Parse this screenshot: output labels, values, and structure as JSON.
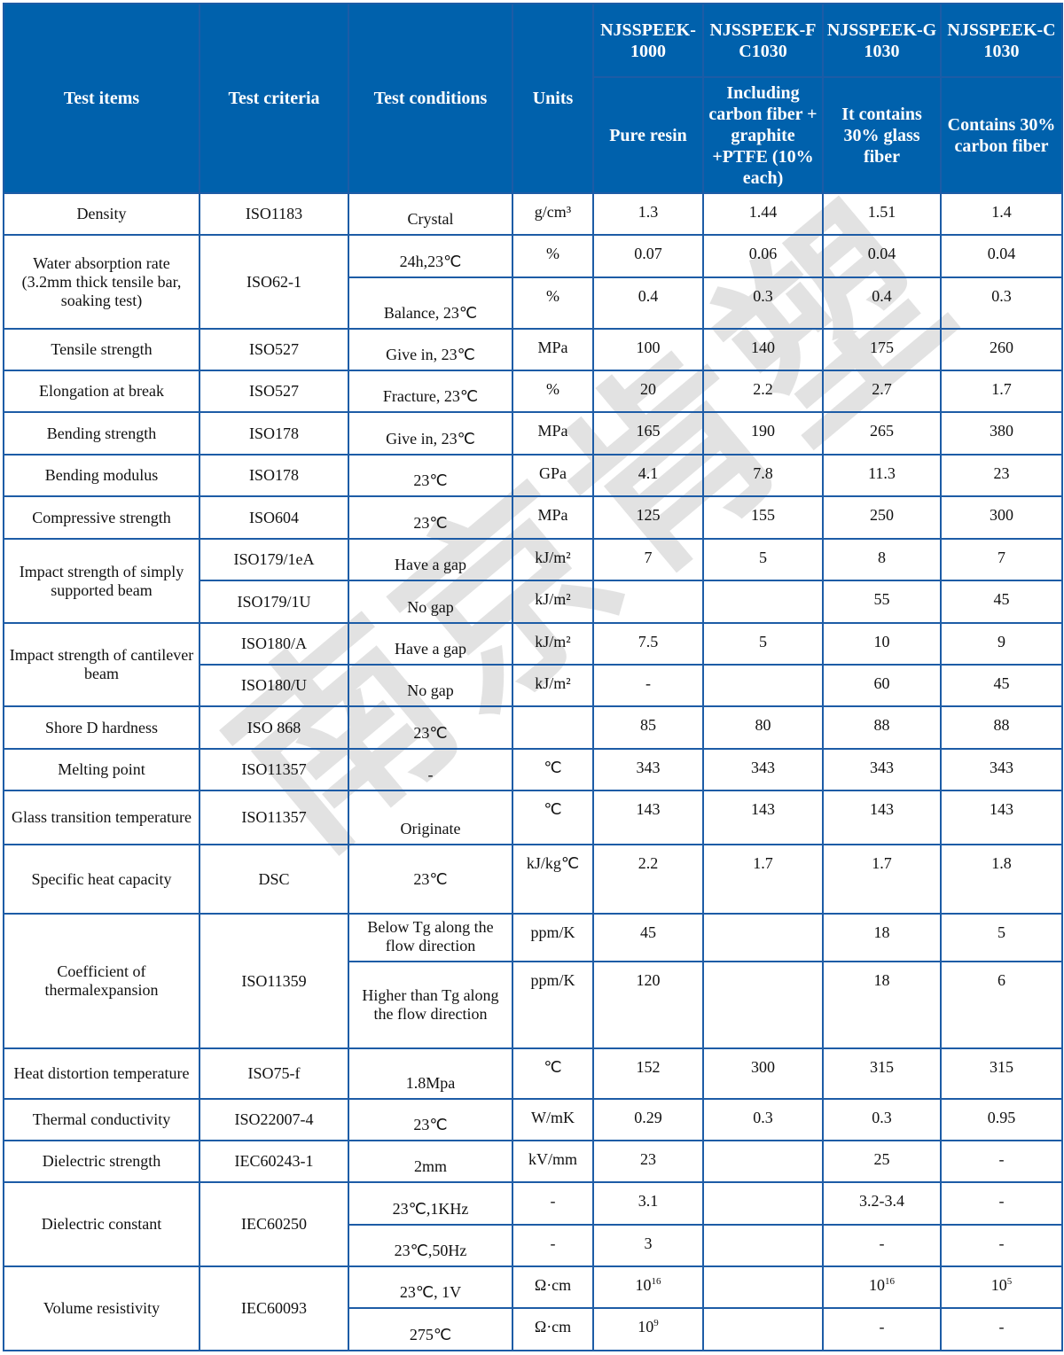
{
  "header": {
    "test_items": "Test items",
    "test_criteria": "Test criteria",
    "test_conditions": "Test conditions",
    "units": "Units",
    "products": [
      {
        "name": "NJSSPEEK-1000",
        "desc": "Pure resin"
      },
      {
        "name": "NJSSPEEK-FC1030",
        "desc": "Including carbon fiber + graphite +PTFE (10% each)"
      },
      {
        "name": "NJSSPEEK-G1030",
        "desc": "It contains 30% glass fiber"
      },
      {
        "name": "NJSSPEEK-C1030",
        "desc": "Contains 30% carbon fiber"
      }
    ]
  },
  "watermark": "南京肯塑",
  "rows": [
    {
      "cells": [
        {
          "t": "Density"
        },
        {
          "t": "ISO1183"
        },
        {
          "t": "Crystal"
        },
        {
          "t": "g/cm³"
        },
        {
          "t": "1.3"
        },
        {
          "t": "1.44"
        },
        {
          "t": "1.51"
        },
        {
          "t": "1.4"
        }
      ]
    },
    {
      "cells": [
        {
          "t": "Water absorption rate (3.2mm thick tensile bar, soaking test)",
          "rs": 2
        },
        {
          "t": "ISO62-1",
          "rs": 2
        },
        {
          "t": "24h,23℃"
        },
        {
          "t": "%"
        },
        {
          "t": "0.07"
        },
        {
          "t": "0.06"
        },
        {
          "t": "0.04"
        },
        {
          "t": "0.04"
        }
      ]
    },
    {
      "cells": [
        {
          "t": "Balance, 23℃"
        },
        {
          "t": "%"
        },
        {
          "t": "0.4"
        },
        {
          "t": "0.3"
        },
        {
          "t": "0.4"
        },
        {
          "t": "0.3"
        }
      ]
    },
    {
      "cells": [
        {
          "t": "Tensile strength"
        },
        {
          "t": "ISO527"
        },
        {
          "t": "Give in, 23℃"
        },
        {
          "t": "MPa"
        },
        {
          "t": "100"
        },
        {
          "t": "140"
        },
        {
          "t": "175"
        },
        {
          "t": "260"
        }
      ]
    },
    {
      "cells": [
        {
          "t": "Elongation at break"
        },
        {
          "t": "ISO527"
        },
        {
          "t": "Fracture, 23℃"
        },
        {
          "t": "%"
        },
        {
          "t": "20"
        },
        {
          "t": "2.2"
        },
        {
          "t": "2.7"
        },
        {
          "t": "1.7"
        }
      ]
    },
    {
      "cells": [
        {
          "t": "Bending strength"
        },
        {
          "t": "ISO178"
        },
        {
          "t": "Give in, 23℃"
        },
        {
          "t": "MPa"
        },
        {
          "t": "165"
        },
        {
          "t": "190"
        },
        {
          "t": "265"
        },
        {
          "t": "380"
        }
      ]
    },
    {
      "cells": [
        {
          "t": "Bending modulus"
        },
        {
          "t": "ISO178"
        },
        {
          "t": "23℃"
        },
        {
          "t": "GPa"
        },
        {
          "t": "4.1"
        },
        {
          "t": "7.8"
        },
        {
          "t": "11.3"
        },
        {
          "t": "23"
        }
      ]
    },
    {
      "cells": [
        {
          "t": "Compressive strength"
        },
        {
          "t": "ISO604"
        },
        {
          "t": "23℃"
        },
        {
          "t": "MPa"
        },
        {
          "t": "125"
        },
        {
          "t": "155"
        },
        {
          "t": "250"
        },
        {
          "t": "300"
        }
      ]
    },
    {
      "cells": [
        {
          "t": "Impact strength of simply supported beam",
          "rs": 2
        },
        {
          "t": "ISO179/1eA"
        },
        {
          "t": "Have a gap"
        },
        {
          "t": "kJ/m²"
        },
        {
          "t": "7"
        },
        {
          "t": "5"
        },
        {
          "t": "8"
        },
        {
          "t": "7"
        }
      ]
    },
    {
      "cells": [
        {
          "t": "ISO179/1U"
        },
        {
          "t": "No gap"
        },
        {
          "t": "kJ/m²"
        },
        {
          "t": ""
        },
        {
          "t": ""
        },
        {
          "t": "55"
        },
        {
          "t": "45"
        }
      ]
    },
    {
      "cells": [
        {
          "t": "Impact strength of cantilever beam",
          "rs": 2
        },
        {
          "t": "ISO180/A"
        },
        {
          "t": "Have a gap"
        },
        {
          "t": "kJ/m²"
        },
        {
          "t": "7.5"
        },
        {
          "t": "5"
        },
        {
          "t": "10"
        },
        {
          "t": "9"
        }
      ]
    },
    {
      "cells": [
        {
          "t": "ISO180/U"
        },
        {
          "t": "No gap"
        },
        {
          "t": "kJ/m²"
        },
        {
          "t": "-"
        },
        {
          "t": ""
        },
        {
          "t": "60"
        },
        {
          "t": "45"
        }
      ]
    },
    {
      "cells": [
        {
          "t": "Shore D hardness"
        },
        {
          "t": "ISO 868"
        },
        {
          "t": "23℃"
        },
        {
          "t": ""
        },
        {
          "t": "85"
        },
        {
          "t": "80"
        },
        {
          "t": "88"
        },
        {
          "t": "88"
        }
      ]
    },
    {
      "cells": [
        {
          "t": "Melting point"
        },
        {
          "t": "ISO11357"
        },
        {
          "t": "-"
        },
        {
          "t": "℃"
        },
        {
          "t": "343"
        },
        {
          "t": "343"
        },
        {
          "t": "343"
        },
        {
          "t": "343"
        }
      ]
    },
    {
      "cells": [
        {
          "t": "Glass transition temperature"
        },
        {
          "t": "ISO11357"
        },
        {
          "t": "Originate"
        },
        {
          "t": "℃"
        },
        {
          "t": "143"
        },
        {
          "t": "143"
        },
        {
          "t": "143"
        },
        {
          "t": "143"
        }
      ]
    },
    {
      "cells": [
        {
          "t": "Specific heat capacity"
        },
        {
          "t": "DSC"
        },
        {
          "t": "23℃"
        },
        {
          "t": "kJ/kg℃"
        },
        {
          "t": "2.2"
        },
        {
          "t": "1.7"
        },
        {
          "t": "1.7"
        },
        {
          "t": "1.8"
        }
      ]
    },
    {
      "cells": [
        {
          "t": "Coefficient of thermalexpansion",
          "rs": 2
        },
        {
          "t": "ISO11359",
          "rs": 2
        },
        {
          "t": "Below Tg along the flow direction"
        },
        {
          "t": "ppm/K"
        },
        {
          "t": "45"
        },
        {
          "t": ""
        },
        {
          "t": "18"
        },
        {
          "t": "5"
        }
      ]
    },
    {
      "cells": [
        {
          "t": "Higher than Tg along the flow direction"
        },
        {
          "t": "ppm/K"
        },
        {
          "t": "120"
        },
        {
          "t": ""
        },
        {
          "t": "18"
        },
        {
          "t": "6"
        }
      ]
    },
    {
      "cells": [
        {
          "t": "Heat distortion temperature"
        },
        {
          "t": "ISO75-f"
        },
        {
          "t": "1.8Mpa"
        },
        {
          "t": "℃"
        },
        {
          "t": "152"
        },
        {
          "t": "300"
        },
        {
          "t": "315"
        },
        {
          "t": "315"
        }
      ]
    },
    {
      "cells": [
        {
          "t": "Thermal conductivity"
        },
        {
          "t": "ISO22007-4"
        },
        {
          "t": "23℃"
        },
        {
          "t": "W/mK"
        },
        {
          "t": "0.29"
        },
        {
          "t": "0.3"
        },
        {
          "t": "0.3"
        },
        {
          "t": "0.95"
        }
      ]
    },
    {
      "cells": [
        {
          "t": "Dielectric strength"
        },
        {
          "t": "IEC60243-1"
        },
        {
          "t": "2mm"
        },
        {
          "t": "kV/mm"
        },
        {
          "t": "23"
        },
        {
          "t": ""
        },
        {
          "t": "25"
        },
        {
          "t": "-"
        }
      ]
    },
    {
      "cells": [
        {
          "t": "Dielectric constant",
          "rs": 2
        },
        {
          "t": "IEC60250",
          "rs": 2
        },
        {
          "t": "23℃,1KHz"
        },
        {
          "t": "-"
        },
        {
          "t": "3.1"
        },
        {
          "t": ""
        },
        {
          "t": "3.2-3.4"
        },
        {
          "t": "-"
        }
      ]
    },
    {
      "cells": [
        {
          "t": "23℃,50Hz"
        },
        {
          "t": "-"
        },
        {
          "t": "3"
        },
        {
          "t": ""
        },
        {
          "t": "-"
        },
        {
          "t": "-"
        }
      ]
    },
    {
      "cells": [
        {
          "t": "Volume resistivity",
          "rs": 2
        },
        {
          "t": "IEC60093",
          "rs": 2
        },
        {
          "t": "23℃, 1V"
        },
        {
          "t": "Ω·cm"
        },
        {
          "t": "10",
          "exp": "16"
        },
        {
          "t": ""
        },
        {
          "t": "10",
          "exp": "16"
        },
        {
          "t": "10",
          "exp": "5"
        }
      ]
    },
    {
      "cells": [
        {
          "t": "275℃"
        },
        {
          "t": "Ω·cm"
        },
        {
          "t": "10",
          "exp": "9"
        },
        {
          "t": ""
        },
        {
          "t": "-"
        },
        {
          "t": "-"
        }
      ]
    }
  ]
}
